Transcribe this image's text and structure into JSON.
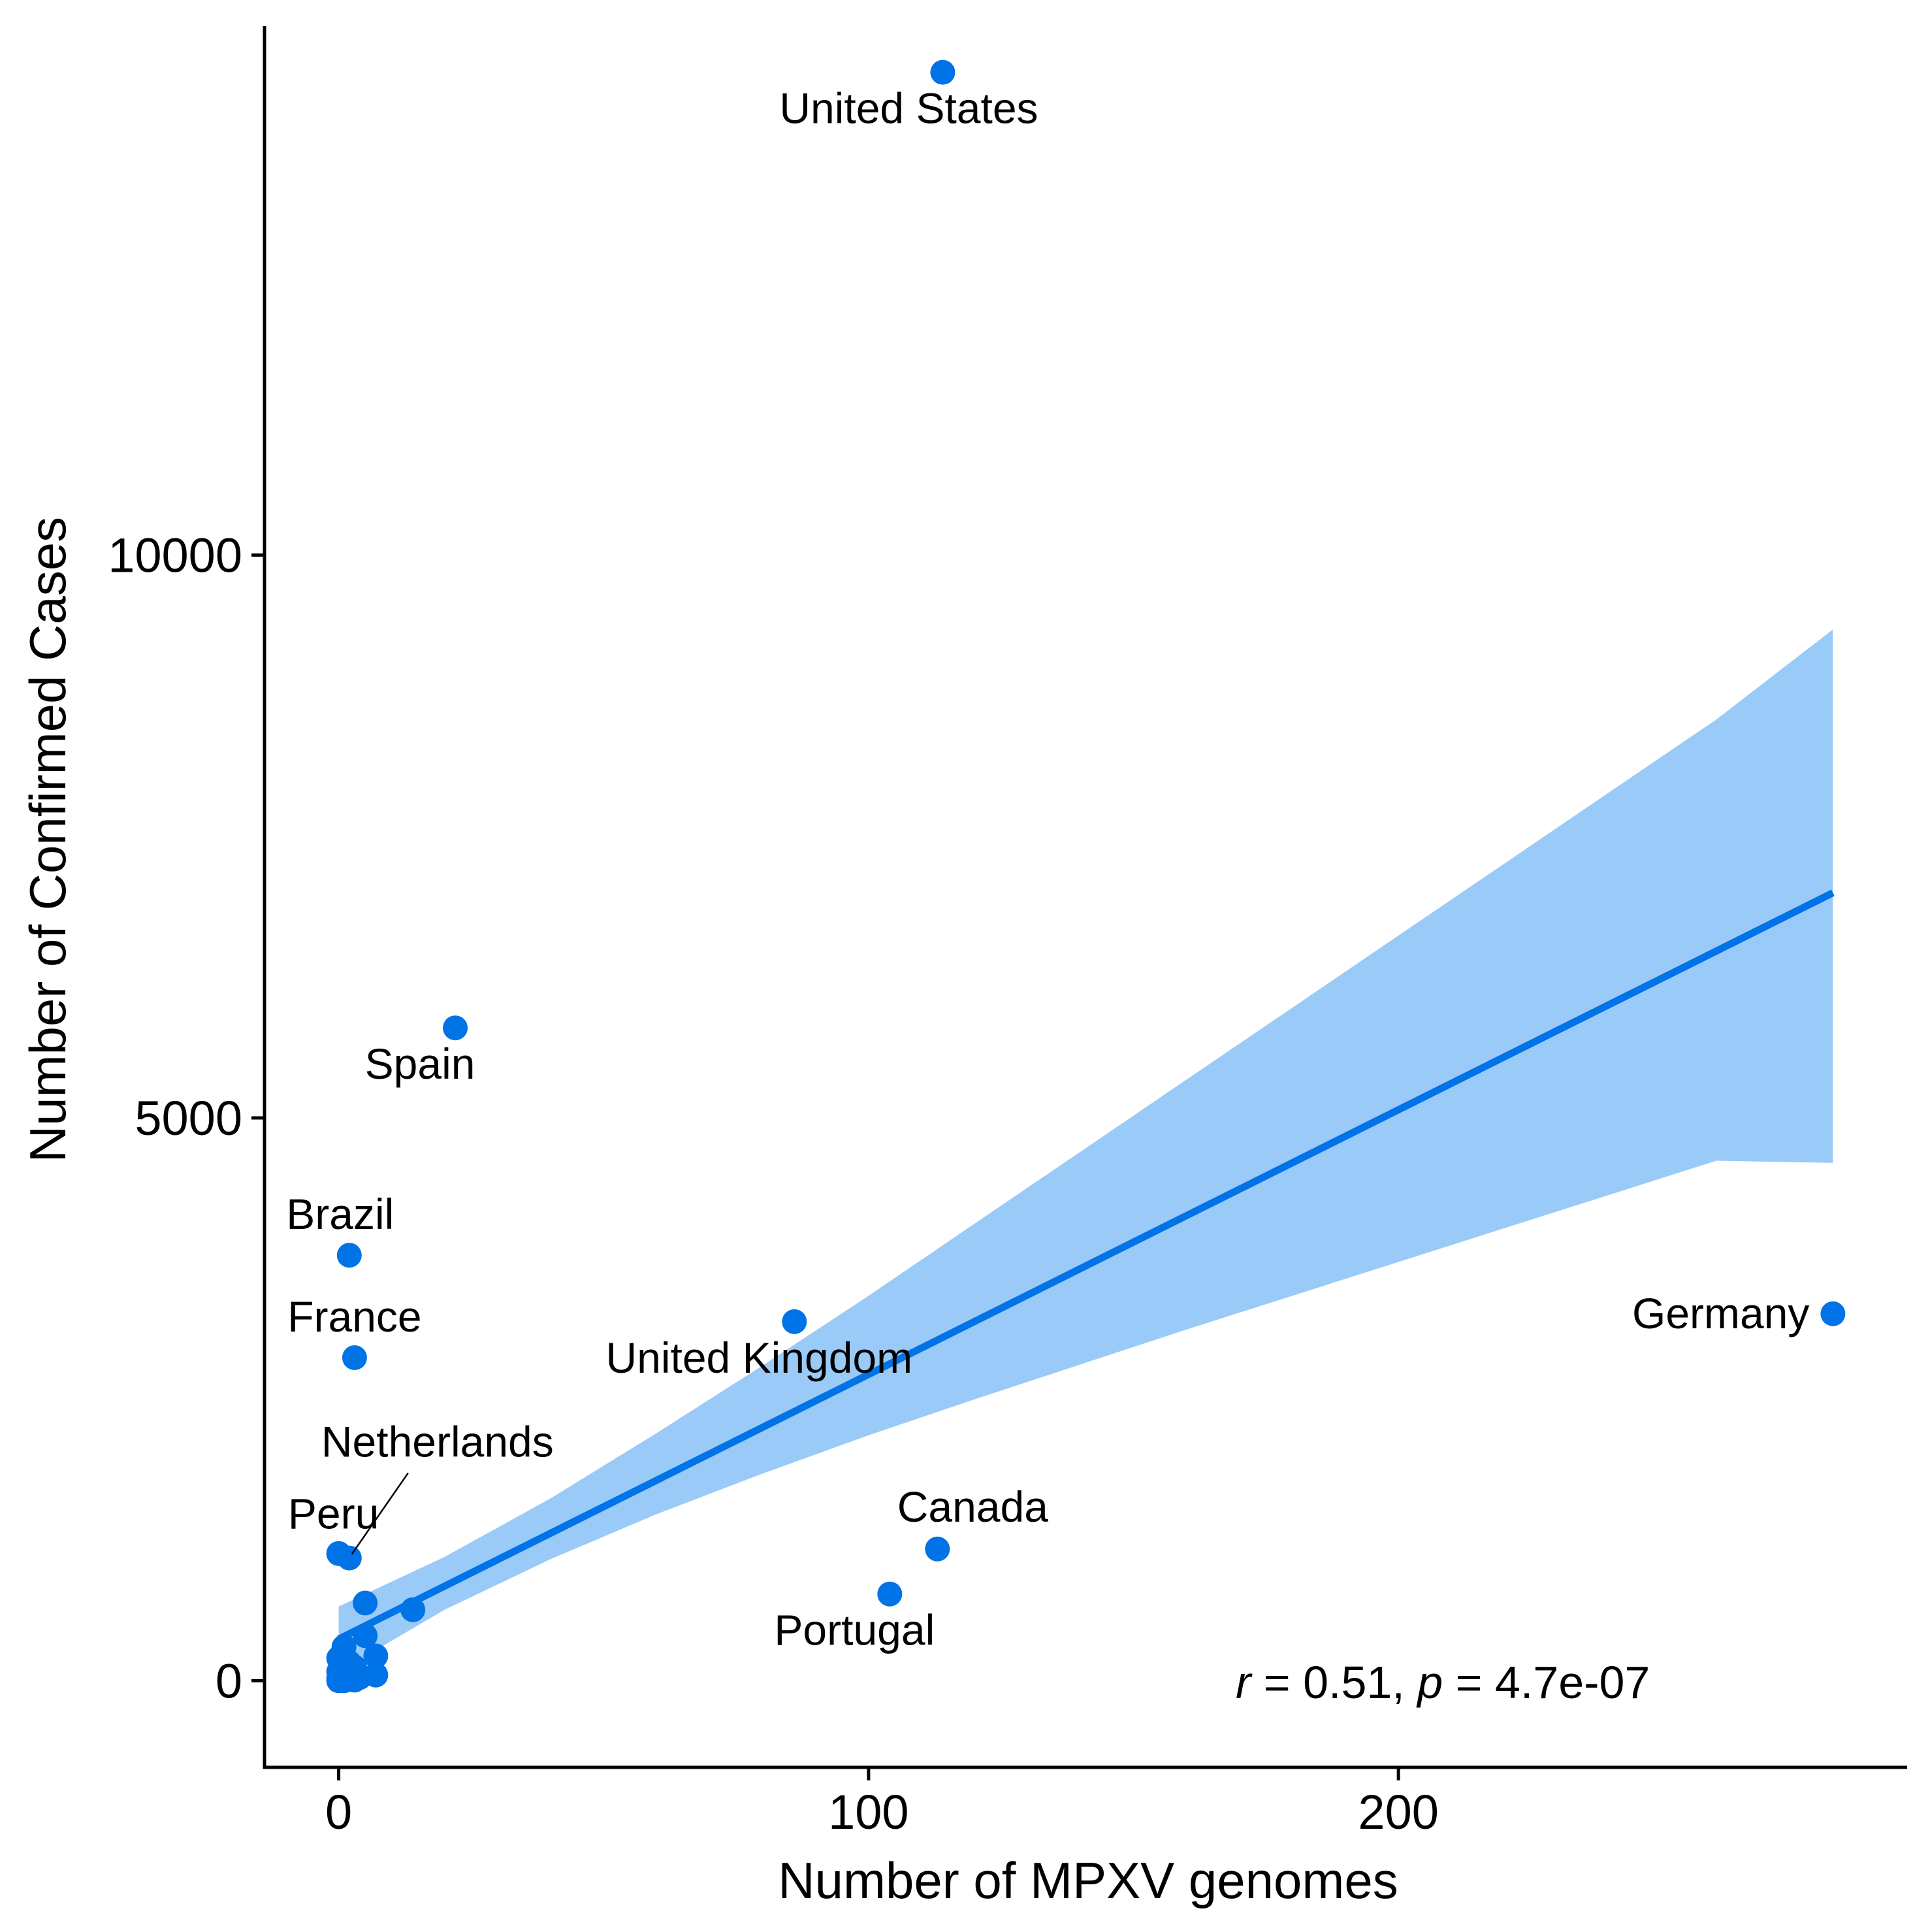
{
  "chart_data": {
    "type": "scatter",
    "title": "",
    "xlabel": "Number of MPXV genomes",
    "ylabel": "Number of Confirmed Cases",
    "xlim": [
      -14,
      296
    ],
    "ylim": [
      -770,
      14700
    ],
    "xticks": [
      0,
      100,
      200
    ],
    "yticks": [
      0,
      5000,
      10000
    ],
    "xtick_labels": [
      "0",
      "100",
      "200"
    ],
    "ytick_labels": [
      "0",
      "5000",
      "10000"
    ],
    "grid": false,
    "legend": "none",
    "colors": {
      "points": "#0073E6",
      "trend_line": "#0073E6",
      "confidence_band": "#9ACAF7",
      "axis": "#000000"
    },
    "points": [
      {
        "label": "United States",
        "x": 114,
        "y": 14290
      },
      {
        "label": "Spain",
        "x": 22,
        "y": 5800
      },
      {
        "label": "Brazil",
        "x": 2,
        "y": 3780
      },
      {
        "label": "France",
        "x": 3,
        "y": 2870
      },
      {
        "label": "United Kingdom",
        "x": 86,
        "y": 3190
      },
      {
        "label": "Germany",
        "x": 282,
        "y": 3260
      },
      {
        "label": "Canada",
        "x": 113,
        "y": 1170
      },
      {
        "label": "Portugal",
        "x": 104,
        "y": 770
      },
      {
        "label": "Peru",
        "x": 0,
        "y": 1130
      },
      {
        "label": "Netherlands",
        "x": 2,
        "y": 1090
      },
      {
        "label": "",
        "x": 5,
        "y": 690
      },
      {
        "label": "",
        "x": 14,
        "y": 630
      },
      {
        "label": "",
        "x": 5,
        "y": 400
      },
      {
        "label": "",
        "x": 7,
        "y": 220
      },
      {
        "label": "",
        "x": 1,
        "y": 300
      },
      {
        "label": "",
        "x": 0,
        "y": 200
      },
      {
        "label": "",
        "x": 2,
        "y": 160
      },
      {
        "label": "",
        "x": 3,
        "y": 120
      },
      {
        "label": "",
        "x": 0,
        "y": 80
      },
      {
        "label": "",
        "x": 7,
        "y": 50
      },
      {
        "label": "",
        "x": 1,
        "y": 40
      },
      {
        "label": "",
        "x": 0,
        "y": 20
      },
      {
        "label": "",
        "x": 2,
        "y": 10
      },
      {
        "label": "",
        "x": 3,
        "y": 5
      },
      {
        "label": "",
        "x": 4,
        "y": 30
      },
      {
        "label": "",
        "x": 1,
        "y": 0
      },
      {
        "label": "",
        "x": 0,
        "y": 0
      }
    ],
    "trend_line": {
      "x": [
        0,
        282
      ],
      "y": [
        370,
        7000
      ]
    },
    "confidence_band": {
      "x": [
        0,
        20,
        40,
        60,
        80,
        100,
        120,
        140,
        160,
        180,
        200,
        220,
        240,
        260,
        282
      ],
      "upper": [
        660,
        1100,
        1620,
        2200,
        2800,
        3420,
        4060,
        4700,
        5340,
        5980,
        6620,
        7260,
        7900,
        8540,
        9340
      ],
      "lower": [
        80,
        630,
        1080,
        1480,
        1840,
        2180,
        2500,
        2810,
        3120,
        3420,
        3720,
        4020,
        4320,
        4620,
        4600
      ]
    },
    "annotation": {
      "r_symbol": "r",
      "r_text": " = 0.51, ",
      "p_symbol": "p",
      "p_text": " = 4.7e-07"
    }
  }
}
